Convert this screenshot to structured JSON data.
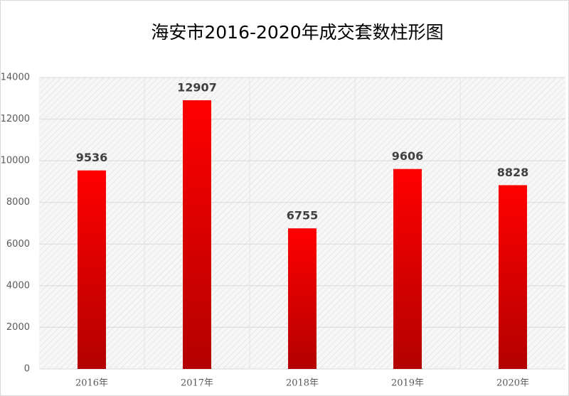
{
  "chart_data": {
    "type": "bar",
    "title": "海安市2016-2020年成交套数柱形图",
    "categories": [
      "2016年",
      "2017年",
      "2018年",
      "2019年",
      "2020年"
    ],
    "values": [
      9536,
      12907,
      6755,
      9606,
      8828
    ],
    "color": "#ff0000",
    "ylim": [
      0,
      14000
    ],
    "yticks": [
      0,
      2000,
      4000,
      6000,
      8000,
      10000,
      12000,
      14000
    ],
    "grid": true
  }
}
